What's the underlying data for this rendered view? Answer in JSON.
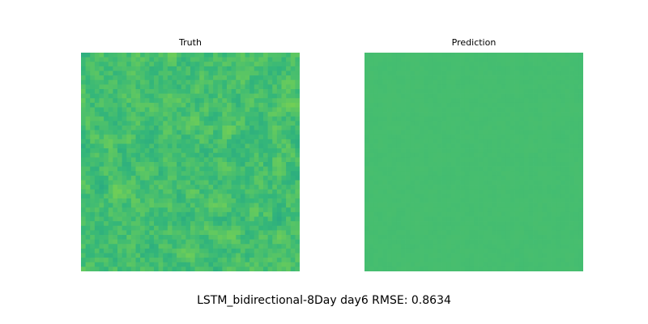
{
  "caption": "LSTM_bidirectional-8Day day6 RMSE: 0.8634",
  "chart_data": [
    {
      "type": "heatmap",
      "title": "Truth",
      "colormap": "viridis",
      "grid_size": [
        48,
        48
      ],
      "value_range": [
        0.0,
        1.0
      ],
      "typical_value": 0.63,
      "spread": 0.06,
      "axes_visible": false
    },
    {
      "type": "heatmap",
      "title": "Prediction",
      "colormap": "viridis",
      "grid_size": [
        48,
        48
      ],
      "value_range": [
        0.0,
        1.0
      ],
      "typical_value": 0.63,
      "spread": 0.004,
      "axes_visible": false
    }
  ]
}
